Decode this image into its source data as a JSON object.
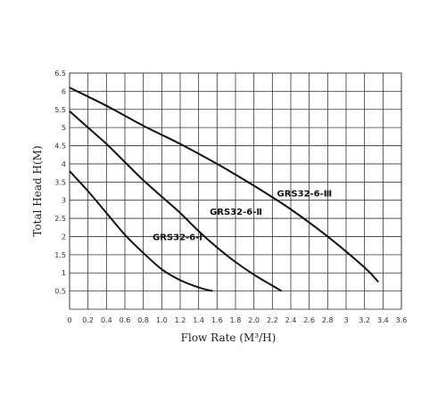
{
  "chart_data": {
    "type": "line",
    "title": "",
    "xlabel": "Flow Rate (M³/H)",
    "ylabel": "Total Head H(M)",
    "xlim": [
      0,
      3.6
    ],
    "ylim": [
      0,
      6.5
    ],
    "x_ticks": [
      "0",
      "0.2",
      "0.4",
      "0.6",
      "0.8",
      "1.0",
      "1.2",
      "1.4",
      "1.6",
      "1.8",
      "2.0",
      "2.2",
      "2.4",
      "2.6",
      "2.8",
      "3",
      "3.2",
      "3.4",
      "3.6"
    ],
    "y_ticks": [
      "0.5",
      "1",
      "1.5",
      "2",
      "2.5",
      "3",
      "3.5",
      "4",
      "4.5",
      "5",
      "5.5",
      "6",
      "6.5"
    ],
    "grid": true,
    "series": [
      {
        "name": "GRS32-6-Ⅰ",
        "x": [
          0,
          0.2,
          0.4,
          0.6,
          0.8,
          1.0,
          1.2,
          1.4,
          1.55
        ],
        "y": [
          3.8,
          3.25,
          2.65,
          2.05,
          1.55,
          1.1,
          0.8,
          0.6,
          0.5
        ]
      },
      {
        "name": "GRS32-6-Ⅱ",
        "x": [
          0,
          0.2,
          0.4,
          0.6,
          0.8,
          1.0,
          1.2,
          1.4,
          1.6,
          1.8,
          2.0,
          2.2,
          2.3
        ],
        "y": [
          5.45,
          5.0,
          4.55,
          4.05,
          3.55,
          3.1,
          2.65,
          2.15,
          1.7,
          1.3,
          0.95,
          0.65,
          0.5
        ]
      },
      {
        "name": "GRS32-6-Ⅲ",
        "x": [
          0,
          0.4,
          0.8,
          1.2,
          1.6,
          2.0,
          2.4,
          2.8,
          3.2,
          3.35
        ],
        "y": [
          6.1,
          5.6,
          5.05,
          4.55,
          4.0,
          3.4,
          2.75,
          2.0,
          1.15,
          0.75
        ]
      }
    ],
    "series_labels": [
      {
        "text": "GRS32-6-Ⅰ",
        "x": 0.9,
        "y": 1.9
      },
      {
        "text": "GRS32-6-Ⅱ",
        "x": 1.52,
        "y": 2.6
      },
      {
        "text": "GRS32-6-Ⅲ",
        "x": 2.25,
        "y": 3.1
      }
    ]
  }
}
